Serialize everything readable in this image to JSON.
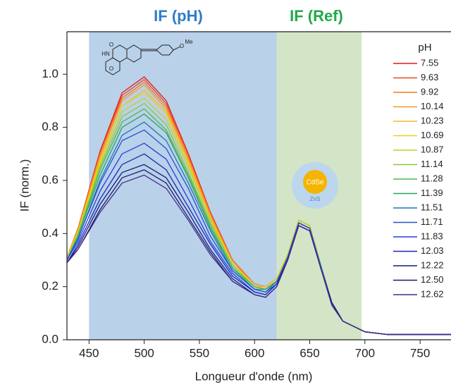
{
  "chart_data": {
    "type": "line",
    "x_label": "Longueur d'onde (nm)",
    "y_label": "IF (norm.)",
    "xlim": [
      430,
      778
    ],
    "ylim": [
      0,
      1.16
    ],
    "xticks": [
      450,
      500,
      550,
      600,
      650,
      700,
      750
    ],
    "yticks": [
      {
        "value": 0,
        "label": "0.0"
      },
      0.2,
      0.4,
      0.6,
      0.8,
      {
        "value": 1,
        "label": "1.0"
      }
    ],
    "legend_title": "pH",
    "legend_position": "right",
    "regions": [
      {
        "label": "IF (pH)",
        "xlim": [
          450,
          620
        ],
        "color": "#b9d1e9",
        "label_color": "#2f7cc6"
      },
      {
        "label": "IF (Ref)",
        "xlim": [
          620,
          697
        ],
        "color": "#d3e5c6",
        "label_color": "#20a84c"
      }
    ],
    "structure_labels": [
      "HN",
      "O",
      "O",
      "O",
      "Me"
    ],
    "quantum_dot": {
      "core": "CdSe",
      "shell": "ZnS"
    },
    "x": [
      430,
      440,
      460,
      480,
      500,
      520,
      540,
      560,
      580,
      600,
      610,
      620,
      630,
      640,
      650,
      660,
      670,
      680,
      700,
      720,
      750,
      778
    ],
    "series": [
      {
        "name": "7.55",
        "color": "#e8171b",
        "values": [
          0.31,
          0.42,
          0.71,
          0.93,
          0.99,
          0.9,
          0.7,
          0.48,
          0.3,
          0.21,
          0.2,
          0.23,
          0.32,
          0.45,
          0.43,
          0.28,
          0.14,
          0.07,
          0.03,
          0.02,
          0.02,
          0.02
        ]
      },
      {
        "name": "9.63",
        "color": "#f2461a",
        "values": [
          0.31,
          0.42,
          0.7,
          0.92,
          0.98,
          0.89,
          0.69,
          0.48,
          0.3,
          0.21,
          0.2,
          0.23,
          0.32,
          0.45,
          0.43,
          0.28,
          0.14,
          0.07,
          0.03,
          0.02,
          0.02,
          0.02
        ]
      },
      {
        "name": "9.92",
        "color": "#f7761f",
        "values": [
          0.31,
          0.42,
          0.7,
          0.91,
          0.97,
          0.88,
          0.69,
          0.47,
          0.3,
          0.21,
          0.2,
          0.23,
          0.32,
          0.45,
          0.43,
          0.28,
          0.14,
          0.07,
          0.03,
          0.02,
          0.02,
          0.02
        ]
      },
      {
        "name": "10.14",
        "color": "#f79a22",
        "values": [
          0.31,
          0.41,
          0.69,
          0.9,
          0.96,
          0.87,
          0.68,
          0.47,
          0.29,
          0.21,
          0.2,
          0.23,
          0.32,
          0.45,
          0.43,
          0.28,
          0.14,
          0.07,
          0.03,
          0.02,
          0.02,
          0.02
        ]
      },
      {
        "name": "10.23",
        "color": "#f5ba22",
        "values": [
          0.31,
          0.41,
          0.68,
          0.88,
          0.94,
          0.86,
          0.67,
          0.46,
          0.29,
          0.2,
          0.2,
          0.23,
          0.32,
          0.45,
          0.43,
          0.28,
          0.14,
          0.07,
          0.03,
          0.02,
          0.02,
          0.02
        ]
      },
      {
        "name": "10.69",
        "color": "#e6d222",
        "values": [
          0.31,
          0.41,
          0.67,
          0.88,
          0.93,
          0.85,
          0.66,
          0.45,
          0.29,
          0.2,
          0.19,
          0.23,
          0.32,
          0.45,
          0.43,
          0.28,
          0.14,
          0.07,
          0.03,
          0.02,
          0.02,
          0.02
        ]
      },
      {
        "name": "10.87",
        "color": "#c2d226",
        "values": [
          0.31,
          0.4,
          0.66,
          0.86,
          0.91,
          0.83,
          0.65,
          0.45,
          0.28,
          0.2,
          0.19,
          0.22,
          0.32,
          0.45,
          0.43,
          0.28,
          0.14,
          0.07,
          0.03,
          0.02,
          0.02,
          0.02
        ]
      },
      {
        "name": "11.14",
        "color": "#88c83c",
        "values": [
          0.3,
          0.4,
          0.65,
          0.84,
          0.89,
          0.81,
          0.63,
          0.44,
          0.28,
          0.2,
          0.19,
          0.22,
          0.31,
          0.44,
          0.42,
          0.28,
          0.14,
          0.07,
          0.03,
          0.02,
          0.02,
          0.02
        ]
      },
      {
        "name": "11.28",
        "color": "#4fb84a",
        "values": [
          0.3,
          0.39,
          0.64,
          0.82,
          0.87,
          0.79,
          0.62,
          0.43,
          0.27,
          0.2,
          0.19,
          0.22,
          0.31,
          0.44,
          0.42,
          0.28,
          0.14,
          0.07,
          0.03,
          0.02,
          0.02,
          0.02
        ]
      },
      {
        "name": "11.39",
        "color": "#27a65c",
        "values": [
          0.3,
          0.39,
          0.62,
          0.8,
          0.85,
          0.78,
          0.61,
          0.42,
          0.27,
          0.19,
          0.19,
          0.22,
          0.31,
          0.44,
          0.42,
          0.28,
          0.14,
          0.07,
          0.03,
          0.02,
          0.02,
          0.02
        ]
      },
      {
        "name": "11.51",
        "color": "#1e78b0",
        "values": [
          0.3,
          0.38,
          0.6,
          0.77,
          0.82,
          0.75,
          0.59,
          0.41,
          0.26,
          0.19,
          0.18,
          0.22,
          0.31,
          0.44,
          0.42,
          0.28,
          0.14,
          0.07,
          0.03,
          0.02,
          0.02,
          0.02
        ]
      },
      {
        "name": "11.71",
        "color": "#2252d2",
        "values": [
          0.3,
          0.38,
          0.59,
          0.75,
          0.79,
          0.72,
          0.57,
          0.39,
          0.26,
          0.19,
          0.18,
          0.21,
          0.31,
          0.44,
          0.42,
          0.27,
          0.14,
          0.07,
          0.03,
          0.02,
          0.02,
          0.02
        ]
      },
      {
        "name": "11.83",
        "color": "#2a3ce2",
        "values": [
          0.3,
          0.37,
          0.56,
          0.7,
          0.74,
          0.68,
          0.53,
          0.37,
          0.25,
          0.18,
          0.17,
          0.21,
          0.31,
          0.44,
          0.42,
          0.27,
          0.14,
          0.07,
          0.03,
          0.02,
          0.02,
          0.02
        ]
      },
      {
        "name": "12.03",
        "color": "#1a29b2",
        "values": [
          0.29,
          0.36,
          0.53,
          0.66,
          0.7,
          0.64,
          0.5,
          0.36,
          0.24,
          0.18,
          0.17,
          0.21,
          0.3,
          0.43,
          0.41,
          0.27,
          0.14,
          0.07,
          0.03,
          0.02,
          0.02,
          0.02
        ]
      },
      {
        "name": "12.22",
        "color": "#141c82",
        "values": [
          0.29,
          0.35,
          0.51,
          0.63,
          0.66,
          0.61,
          0.48,
          0.34,
          0.23,
          0.17,
          0.16,
          0.2,
          0.3,
          0.43,
          0.41,
          0.27,
          0.14,
          0.07,
          0.03,
          0.02,
          0.02,
          0.02
        ]
      },
      {
        "name": "12.50",
        "color": "#1b1b6c",
        "values": [
          0.29,
          0.34,
          0.49,
          0.61,
          0.64,
          0.59,
          0.46,
          0.33,
          0.22,
          0.17,
          0.16,
          0.2,
          0.3,
          0.43,
          0.41,
          0.27,
          0.13,
          0.07,
          0.03,
          0.02,
          0.02,
          0.02
        ]
      },
      {
        "name": "12.62",
        "color": "#4a2b8c",
        "values": [
          0.29,
          0.34,
          0.48,
          0.59,
          0.62,
          0.57,
          0.45,
          0.32,
          0.22,
          0.17,
          0.16,
          0.2,
          0.3,
          0.43,
          0.41,
          0.27,
          0.13,
          0.07,
          0.03,
          0.02,
          0.02,
          0.02
        ]
      }
    ]
  }
}
